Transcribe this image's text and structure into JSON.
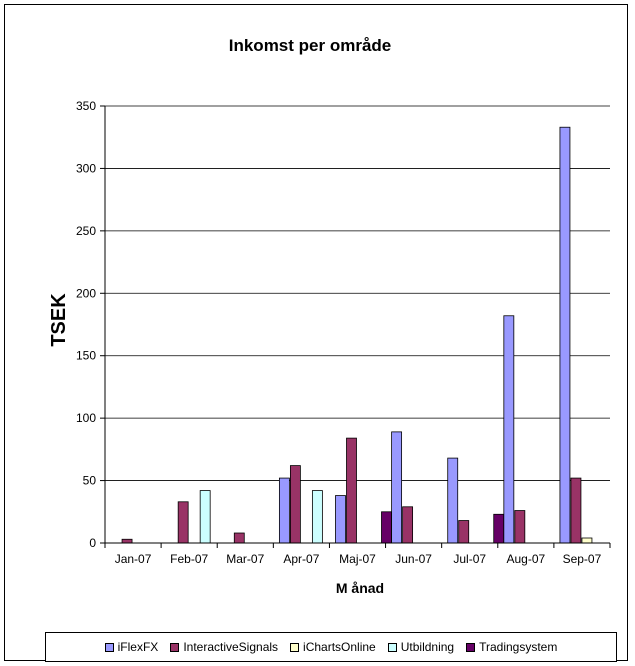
{
  "chart_data": {
    "type": "bar",
    "title": "Inkomst per område",
    "xlabel": "M ånad",
    "ylabel": "TSEK",
    "ylim": [
      0,
      350
    ],
    "yticks": [
      0,
      50,
      100,
      150,
      200,
      250,
      300,
      350
    ],
    "grid": true,
    "legend_position": "bottom",
    "categories": [
      "Jan-07",
      "Feb-07",
      "Mar-07",
      "Apr-07",
      "Maj-07",
      "Jun-07",
      "Jul-07",
      "Aug-07",
      "Sep-07"
    ],
    "series": [
      {
        "name": "iFlexFX",
        "color": "#9999FF",
        "values": [
          0,
          0,
          0,
          52,
          38,
          89,
          68,
          182,
          333
        ]
      },
      {
        "name": "InteractiveSignals",
        "color": "#993366",
        "values": [
          3,
          33,
          8,
          62,
          84,
          29,
          18,
          26,
          52
        ]
      },
      {
        "name": "iChartsOnline",
        "color": "#FFFFCC",
        "values": [
          0,
          0,
          0,
          0,
          0,
          0,
          0,
          0,
          4
        ]
      },
      {
        "name": "Utbildning",
        "color": "#CCFFFF",
        "values": [
          0,
          42,
          0,
          42,
          0,
          0,
          0,
          0,
          0
        ]
      },
      {
        "name": "Tradingsystem",
        "color": "#660066",
        "values": [
          0,
          0,
          0,
          0,
          25,
          0,
          23,
          0,
          0
        ]
      }
    ]
  }
}
